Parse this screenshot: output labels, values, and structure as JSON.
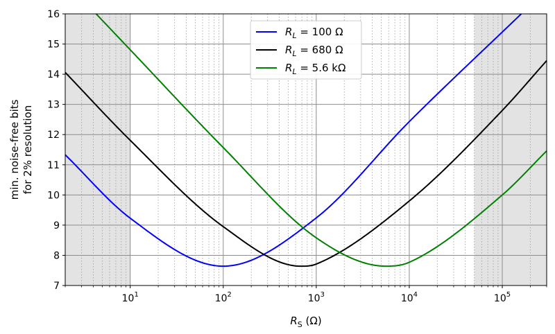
{
  "chart_data": {
    "type": "line",
    "xlabel": "R_S (Ω)",
    "ylabel_lines": [
      "min. noise-free bits",
      "for 2% resolution"
    ],
    "x_scale": "log",
    "xlim": [
      2,
      300000
    ],
    "ylim": [
      7,
      16
    ],
    "x_ticks": [
      {
        "value": 10,
        "base": "10",
        "exp": "1"
      },
      {
        "value": 100,
        "base": "10",
        "exp": "2"
      },
      {
        "value": 1000,
        "base": "10",
        "exp": "3"
      },
      {
        "value": 10000,
        "base": "10",
        "exp": "4"
      },
      {
        "value": 100000,
        "base": "10",
        "exp": "5"
      }
    ],
    "y_ticks": [
      7,
      8,
      9,
      10,
      11,
      12,
      13,
      14,
      15,
      16
    ],
    "grid": true,
    "shaded_x_ranges": [
      [
        2,
        10
      ],
      [
        50000,
        300000
      ]
    ],
    "legend_position": "top-center",
    "series": [
      {
        "name": "R_L = 100 Ω",
        "label": {
          "main": "R",
          "sub": "L",
          "rest": " = 100 Ω"
        },
        "color": "#0000ff",
        "x": [
          2,
          10,
          100,
          1000,
          10000,
          160000
        ],
        "y": [
          11.33,
          9.23,
          7.64,
          9.24,
          12.43,
          16.0
        ]
      },
      {
        "name": "R_L = 680 Ω",
        "label": {
          "main": "R",
          "sub": "L",
          "rest": " = 680 Ω"
        },
        "color": "#000000",
        "x": [
          2,
          10,
          100,
          680,
          1000,
          10000,
          100000,
          300000
        ],
        "y": [
          14.06,
          11.81,
          8.95,
          7.64,
          7.71,
          9.8,
          12.8,
          14.45
        ]
      },
      {
        "name": "R_L = 5.6 kΩ",
        "label": {
          "main": "R",
          "sub": "L",
          "rest": " = 5.6 kΩ"
        },
        "color": "#008000",
        "x": [
          4.3,
          10,
          100,
          1000,
          5600,
          10000,
          100000,
          300000
        ],
        "y": [
          16.0,
          14.81,
          11.57,
          8.58,
          7.64,
          7.77,
          10.0,
          11.46
        ]
      }
    ]
  }
}
